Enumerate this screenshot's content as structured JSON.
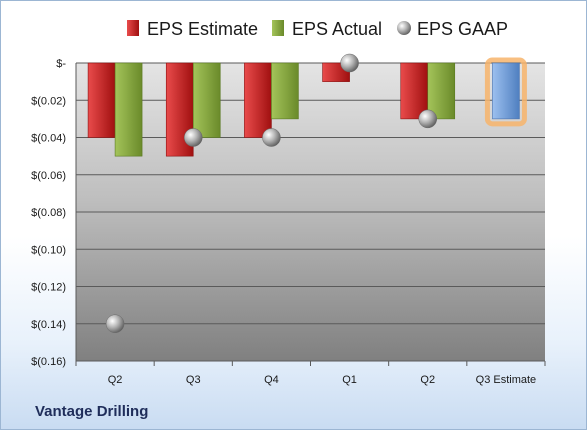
{
  "company_name": "Vantage Drilling",
  "colors": {
    "estimate": "#d21d1d",
    "actual": "#84a83a",
    "gaap": "#9a9a9a",
    "estimate_forecast": "#6f9fdc",
    "forecast_glow": "#f7b46b"
  },
  "chart_data": {
    "type": "bar",
    "categories": [
      "Q2",
      "Q3",
      "Q4",
      "Q1",
      "Q2",
      "Q3 Estimate"
    ],
    "y_tick_labels": [
      "$-",
      "$(0.02)",
      "$(0.04)",
      "$(0.06)",
      "$(0.08)",
      "$(0.10)",
      "$(0.12)",
      "$(0.14)",
      "$(0.16)"
    ],
    "ylim": [
      -0.16,
      0
    ],
    "grid": true,
    "legend_position": "top",
    "series": [
      {
        "name": "EPS Estimate",
        "kind": "bar",
        "values": [
          -0.04,
          -0.05,
          -0.04,
          -0.01,
          -0.03,
          -0.03
        ]
      },
      {
        "name": "EPS Actual",
        "kind": "bar",
        "values": [
          -0.05,
          -0.04,
          -0.03,
          null,
          -0.03,
          null
        ]
      },
      {
        "name": "EPS GAAP",
        "kind": "marker",
        "values": [
          -0.14,
          -0.04,
          -0.04,
          0.0,
          -0.03,
          null
        ]
      }
    ]
  }
}
